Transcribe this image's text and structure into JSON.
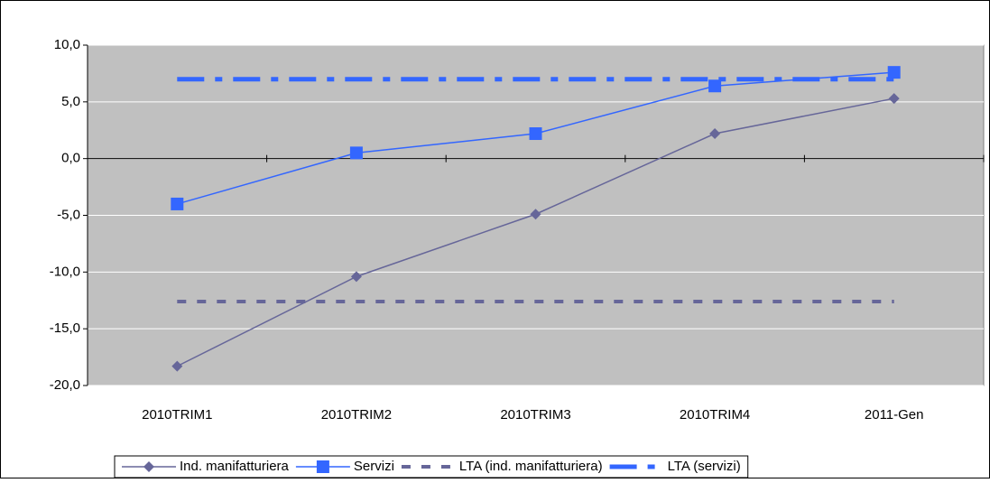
{
  "chart_data": {
    "type": "line",
    "categories": [
      "2010TRIM1",
      "2010TRIM2",
      "2010TRIM3",
      "2010TRIM4",
      "2011-Gen"
    ],
    "series": [
      {
        "name": "Ind. manifatturiera",
        "color": "#666699",
        "marker": "diamond",
        "dash": "solid",
        "values": [
          -18.3,
          -10.4,
          -4.9,
          2.2,
          5.3
        ]
      },
      {
        "name": "Servizi",
        "color": "#3366ff",
        "marker": "square",
        "dash": "solid",
        "values": [
          -4.0,
          0.5,
          2.2,
          6.4,
          7.6
        ]
      },
      {
        "name": "LTA (ind. manifatturiera)",
        "color": "#666699",
        "marker": "none",
        "dash": "dash",
        "values": [
          -12.6,
          -12.6,
          -12.6,
          -12.6,
          -12.6
        ]
      },
      {
        "name": "LTA (servizi)",
        "color": "#3366ff",
        "marker": "none",
        "dash": "dashdot",
        "values": [
          7.0,
          7.0,
          7.0,
          7.0,
          7.0
        ]
      }
    ],
    "ylim": [
      -20,
      10
    ],
    "yticks": [
      {
        "value": -20,
        "label": "-20,0"
      },
      {
        "value": -15,
        "label": "-15,0"
      },
      {
        "value": -10,
        "label": "-10,0"
      },
      {
        "value": -5,
        "label": "-5,0"
      },
      {
        "value": 0,
        "label": "0,0"
      },
      {
        "value": 5,
        "label": "5,0"
      },
      {
        "value": 10,
        "label": "10,0"
      }
    ],
    "grid": true,
    "legend": "bottom",
    "background": "#c0c0c0"
  }
}
